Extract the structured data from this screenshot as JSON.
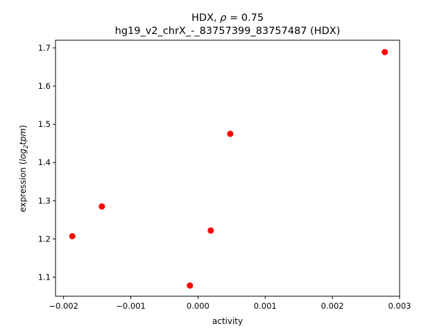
{
  "chart_data": {
    "type": "scatter",
    "title_line1_prefix": "HDX, ",
    "title_rho_symbol": "ρ",
    "title_line1_suffix": " = 0.75",
    "title_line2": "hg19_v2_chrX_-_83757399_83757487 (HDX)",
    "xlabel": "activity",
    "ylabel_prefix": "expression (",
    "ylabel_log": "log",
    "ylabel_sub": "2",
    "ylabel_tpm": "tpm",
    "ylabel_suffix": ")",
    "xlim": [
      -0.00212,
      0.003
    ],
    "ylim": [
      1.05,
      1.72
    ],
    "x_ticks": [
      -0.002,
      -0.001,
      0.0,
      0.001,
      0.002,
      0.003
    ],
    "x_tick_labels": [
      "−0.002",
      "−0.001",
      "0.000",
      "0.001",
      "0.002",
      "0.003"
    ],
    "y_ticks": [
      1.1,
      1.2,
      1.3,
      1.4,
      1.5,
      1.6,
      1.7
    ],
    "y_tick_labels": [
      "1.1",
      "1.2",
      "1.3",
      "1.4",
      "1.5",
      "1.6",
      "1.7"
    ],
    "points": [
      {
        "x": -0.00187,
        "y": 1.207
      },
      {
        "x": -0.00143,
        "y": 1.285
      },
      {
        "x": -0.00012,
        "y": 1.078
      },
      {
        "x": 0.00019,
        "y": 1.222
      },
      {
        "x": 0.00048,
        "y": 1.475
      },
      {
        "x": 0.00278,
        "y": 1.689
      }
    ],
    "point_color": "#ff0000",
    "grid": false,
    "legend": "none"
  }
}
